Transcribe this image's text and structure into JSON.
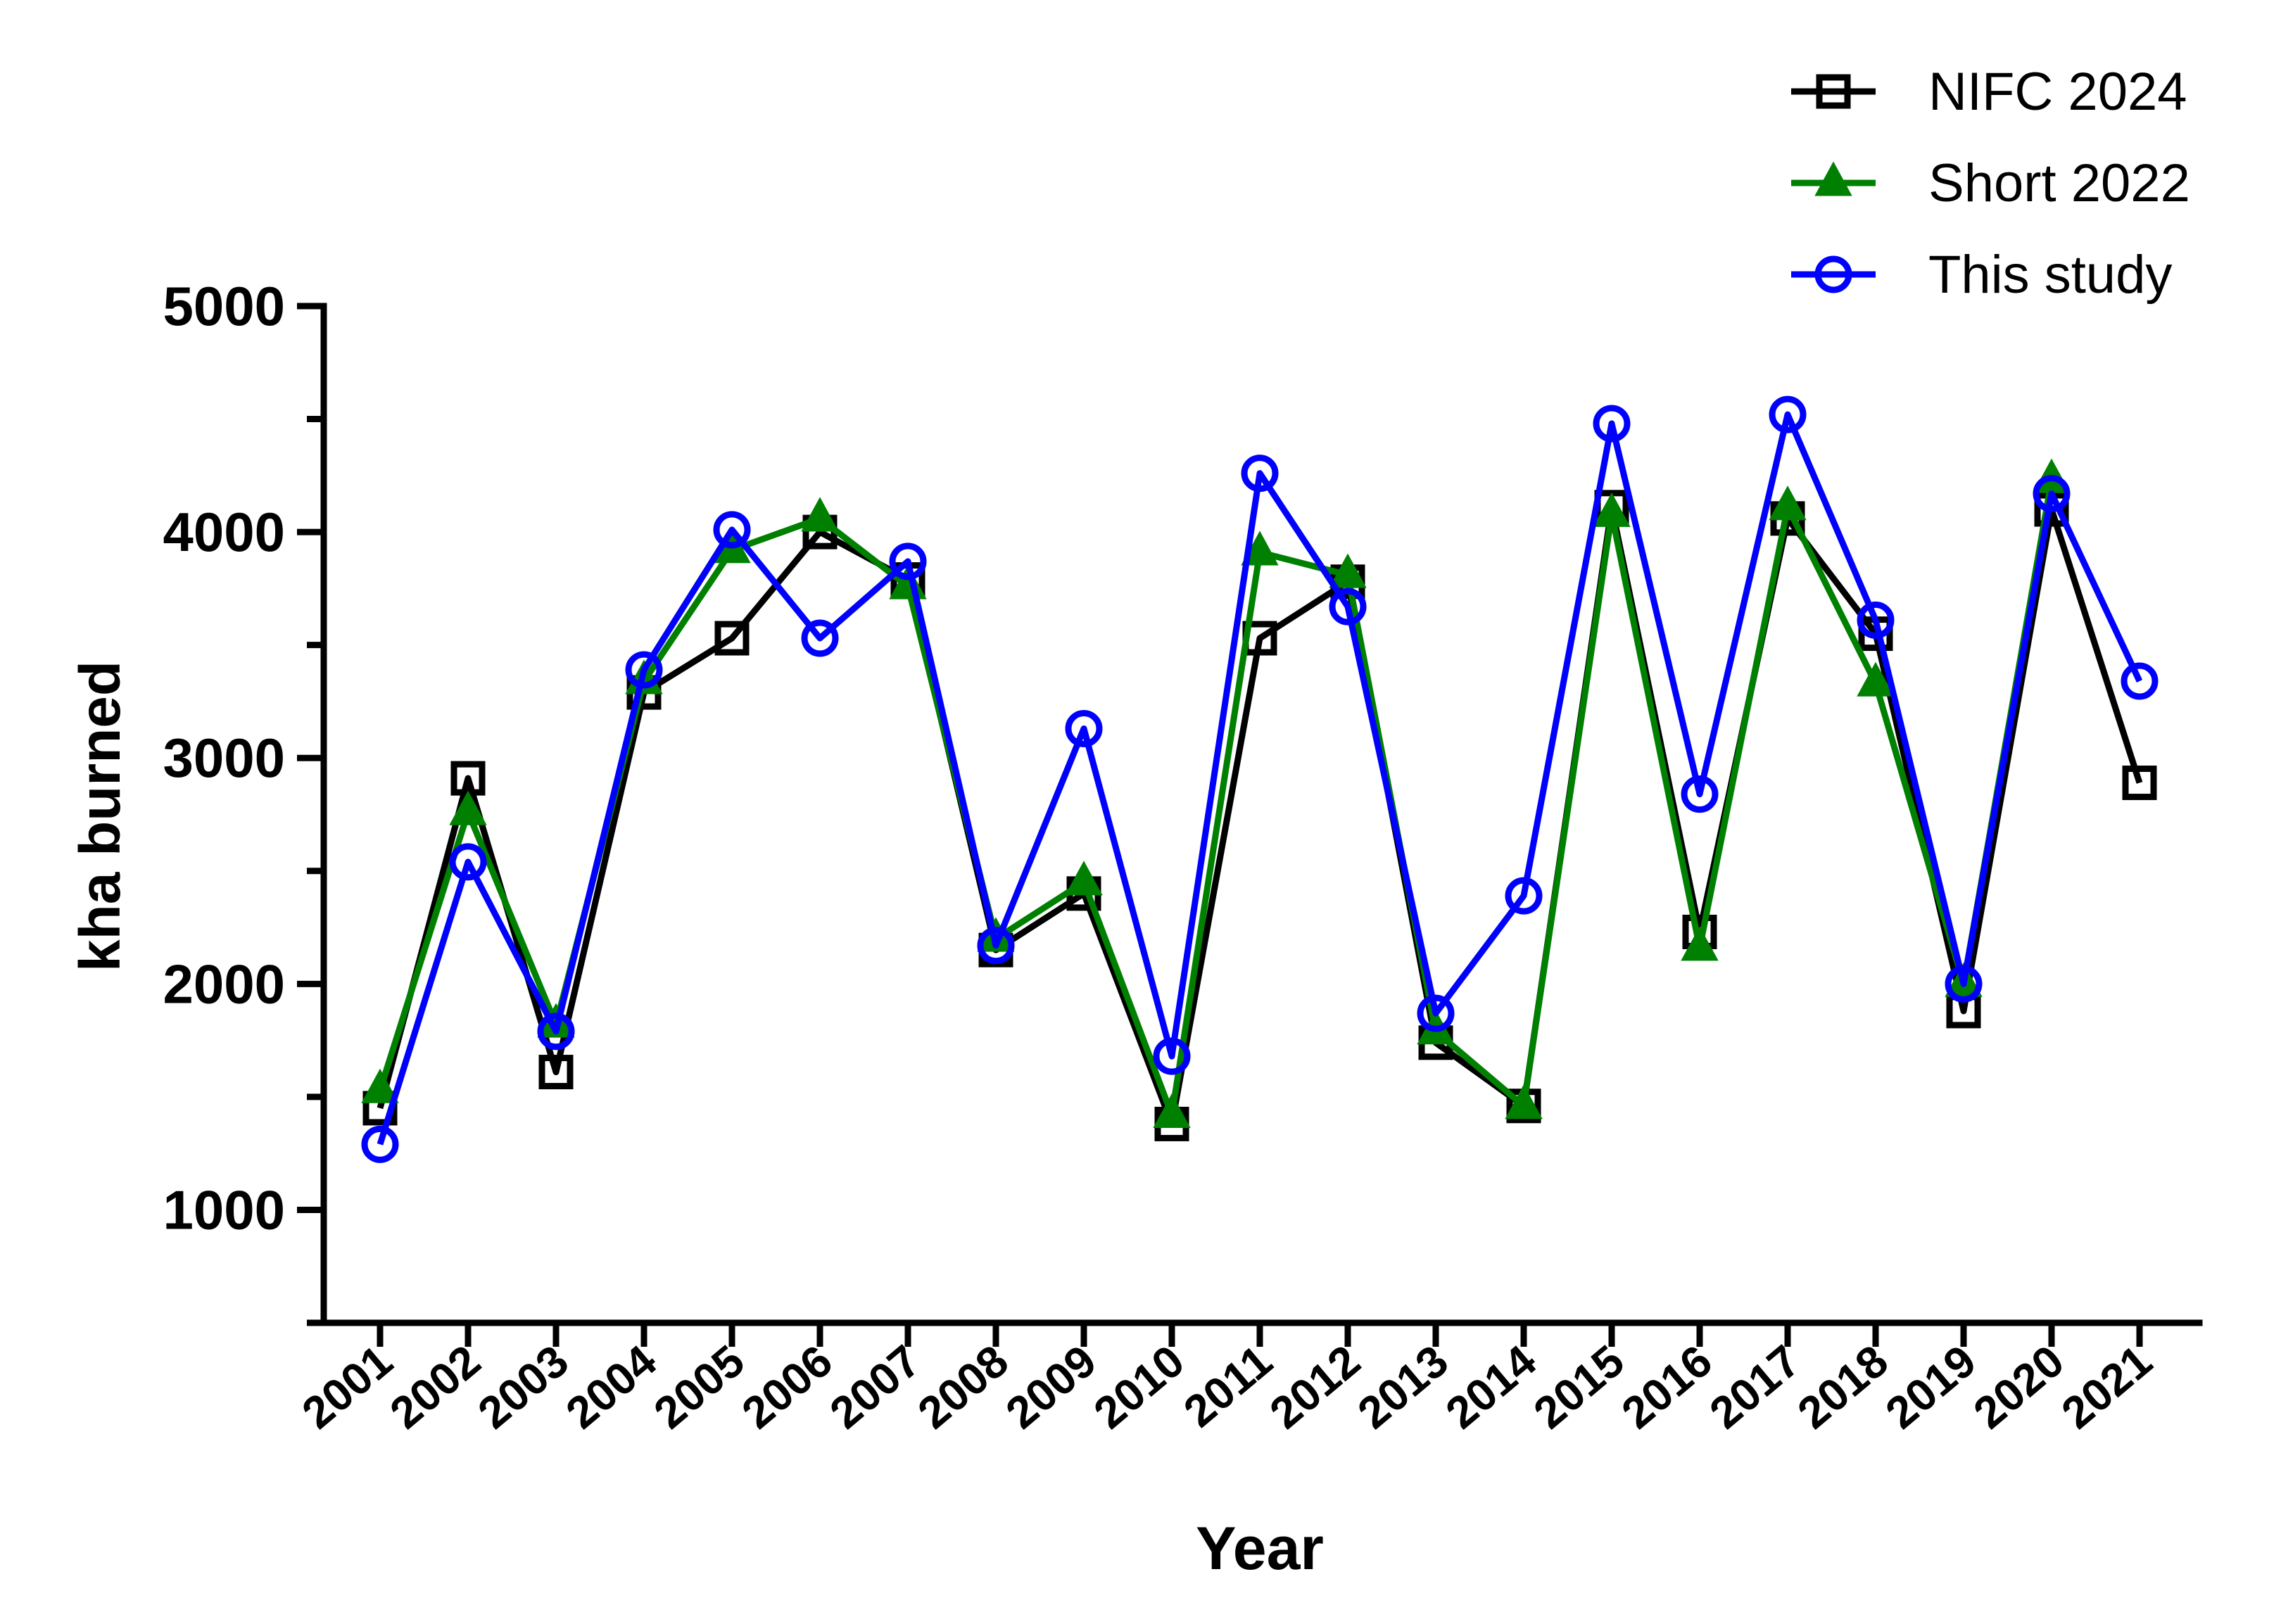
{
  "chart_data": {
    "type": "line",
    "title": "",
    "xlabel": "Year",
    "ylabel": "kha burned",
    "ylim": [
      500,
      5000
    ],
    "y_ticks": [
      1000,
      2000,
      3000,
      4000,
      5000
    ],
    "legend_position": "top-right",
    "categories": [
      "2001",
      "2002",
      "2003",
      "2004",
      "2005",
      "2006",
      "2007",
      "2008",
      "2009",
      "2010",
      "2011",
      "2012",
      "2013",
      "2014",
      "2015",
      "2016",
      "2017",
      "2018",
      "2019",
      "2020",
      "2021"
    ],
    "series": [
      {
        "name": "NIFC 2024",
        "marker": "square",
        "color": "#000000",
        "values": [
          1450,
          2910,
          1610,
          3290,
          3530,
          4000,
          3790,
          2150,
          2400,
          1380,
          3530,
          3780,
          1740,
          1460,
          4110,
          2230,
          4060,
          3550,
          1880,
          4100,
          2890
        ]
      },
      {
        "name": "Short 2022",
        "marker": "triangle",
        "color": "#008000",
        "values": [
          1530,
          2760,
          1820,
          3340,
          3920,
          4060,
          3760,
          2200,
          2450,
          1420,
          3910,
          3810,
          1790,
          1460,
          4080,
          2160,
          4110,
          3330,
          2000,
          4230,
          null
        ]
      },
      {
        "name": "This study",
        "marker": "circle",
        "color": "#0000ff",
        "values": [
          1290,
          2540,
          1790,
          3390,
          4010,
          3530,
          3870,
          2170,
          3130,
          1680,
          4260,
          3670,
          1870,
          2390,
          4480,
          2840,
          4520,
          3610,
          2000,
          4170,
          3340
        ]
      }
    ]
  }
}
